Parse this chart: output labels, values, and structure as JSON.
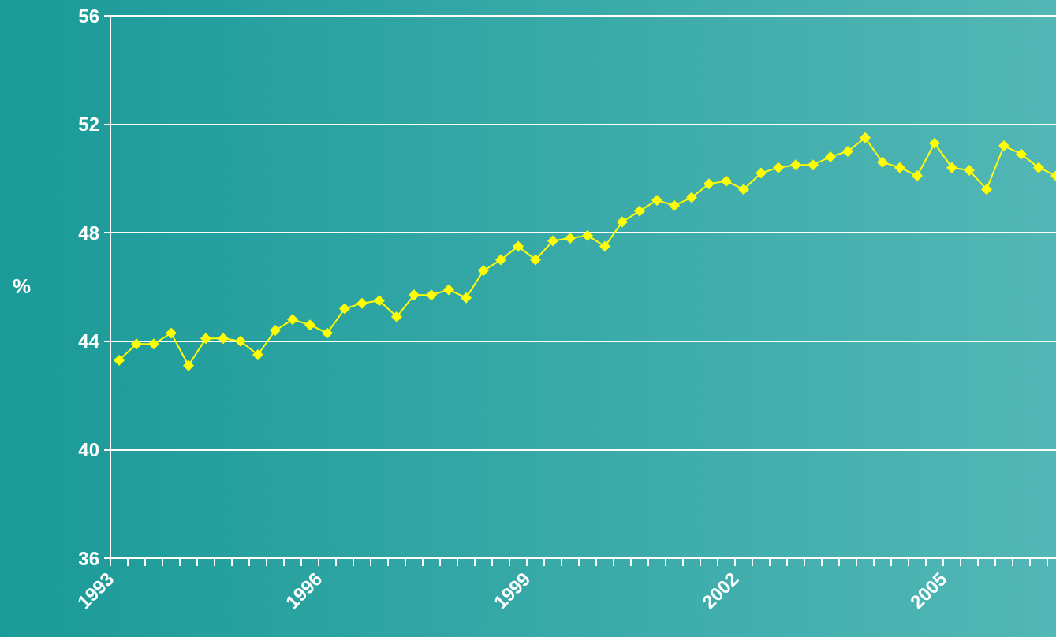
{
  "chart_data": {
    "type": "line",
    "ylabel": "%",
    "x": [
      1993.125,
      1993.375,
      1993.625,
      1993.875,
      1994.125,
      1994.375,
      1994.625,
      1994.875,
      1995.125,
      1995.375,
      1995.625,
      1995.875,
      1996.125,
      1996.375,
      1996.625,
      1996.875,
      1997.125,
      1997.375,
      1997.625,
      1997.875,
      1998.125,
      1998.375,
      1998.625,
      1998.875,
      1999.125,
      1999.375,
      1999.625,
      1999.875,
      2000.125,
      2000.375,
      2000.625,
      2000.875,
      2001.125,
      2001.375,
      2001.625,
      2001.875,
      2002.125,
      2002.375,
      2002.625,
      2002.875,
      2003.125,
      2003.375,
      2003.625,
      2003.875,
      2004.125,
      2004.375,
      2004.625,
      2004.875,
      2005.125,
      2005.375,
      2005.625,
      2005.875,
      2006.125,
      2006.375,
      2006.625
    ],
    "series": [
      {
        "color": "#ffff00",
        "values": [
          43.3,
          43.9,
          43.9,
          44.3,
          43.1,
          44.1,
          44.1,
          44.0,
          43.5,
          44.4,
          44.8,
          44.6,
          44.3,
          45.2,
          45.4,
          45.5,
          44.9,
          45.7,
          45.7,
          45.9,
          45.6,
          46.6,
          47.0,
          47.5,
          47.0,
          47.7,
          47.8,
          47.9,
          47.5,
          48.4,
          48.8,
          49.2,
          49.0,
          49.3,
          49.8,
          49.9,
          49.6,
          50.2,
          50.4,
          50.5,
          50.5,
          50.8,
          51.0,
          51.5,
          50.6,
          50.4,
          50.1,
          51.3,
          50.4,
          50.3,
          49.6,
          51.2,
          50.9,
          50.4,
          50.1
        ]
      }
    ],
    "xlim": [
      1993,
      2006.625
    ],
    "xticks": [
      1993,
      {
        "value": 1993.25,
        "label": null
      },
      {
        "value": 1993.5,
        "label": null
      },
      {
        "value": 1993.75,
        "label": null
      },
      {
        "value": 1994,
        "label": null
      },
      {
        "value": 1994.25,
        "label": null
      },
      {
        "value": 1994.5,
        "label": null
      },
      {
        "value": 1994.75,
        "label": null
      },
      {
        "value": 1995,
        "label": null
      },
      {
        "value": 1995.25,
        "label": null
      },
      {
        "value": 1995.5,
        "label": null
      },
      {
        "value": 1995.75,
        "label": null
      },
      1996,
      {
        "value": 1996.25,
        "label": null
      },
      {
        "value": 1996.5,
        "label": null
      },
      {
        "value": 1996.75,
        "label": null
      },
      {
        "value": 1997,
        "label": null
      },
      {
        "value": 1997.25,
        "label": null
      },
      {
        "value": 1997.5,
        "label": null
      },
      {
        "value": 1997.75,
        "label": null
      },
      {
        "value": 1998,
        "label": null
      },
      {
        "value": 1998.25,
        "label": null
      },
      {
        "value": 1998.5,
        "label": null
      },
      {
        "value": 1998.75,
        "label": null
      },
      1999,
      {
        "value": 1999.25,
        "label": null
      },
      {
        "value": 1999.5,
        "label": null
      },
      {
        "value": 1999.75,
        "label": null
      },
      {
        "value": 2000,
        "label": null
      },
      {
        "value": 2000.25,
        "label": null
      },
      {
        "value": 2000.5,
        "label": null
      },
      {
        "value": 2000.75,
        "label": null
      },
      {
        "value": 2001,
        "label": null
      },
      {
        "value": 2001.25,
        "label": null
      },
      {
        "value": 2001.5,
        "label": null
      },
      {
        "value": 2001.75,
        "label": null
      },
      2002,
      {
        "value": 2002.25,
        "label": null
      },
      {
        "value": 2002.5,
        "label": null
      },
      {
        "value": 2002.75,
        "label": null
      },
      {
        "value": 2003,
        "label": null
      },
      {
        "value": 2003.25,
        "label": null
      },
      {
        "value": 2003.5,
        "label": null
      },
      {
        "value": 2003.75,
        "label": null
      },
      {
        "value": 2004,
        "label": null
      },
      {
        "value": 2004.25,
        "label": null
      },
      {
        "value": 2004.5,
        "label": null
      },
      {
        "value": 2004.75,
        "label": null
      },
      2005,
      {
        "value": 2005.25,
        "label": null
      },
      {
        "value": 2005.5,
        "label": null
      },
      {
        "value": 2005.75,
        "label": null
      },
      {
        "value": 2006,
        "label": null
      },
      {
        "value": 2006.25,
        "label": null
      },
      {
        "value": 2006.5,
        "label": null
      }
    ],
    "ylim": [
      36,
      56
    ],
    "yticks": [
      36,
      40,
      44,
      48,
      52,
      56
    ],
    "grid": "y",
    "marker": "diamond",
    "line_style": "solid"
  }
}
